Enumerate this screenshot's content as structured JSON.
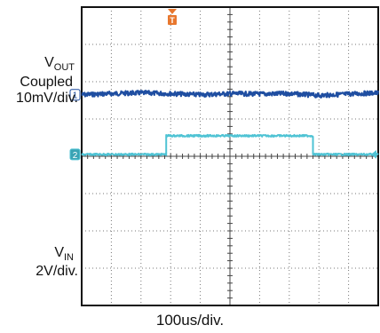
{
  "chart_data": {
    "type": "line",
    "title": "",
    "xlabel": "100us/div.",
    "grid": true,
    "divisions": {
      "x": 10,
      "y": 8
    },
    "trigger_marker": "T",
    "channels": [
      {
        "id": "1",
        "label_main": "V",
        "label_sub": "OUT",
        "label_line2": "Coupled",
        "label_line3": "10mV/div.",
        "color": "#1f4ea1",
        "marker_color": "#ffffff",
        "reference_div": 2.3,
        "x_div": [
          0,
          1,
          2,
          3,
          4,
          5,
          6,
          7,
          8,
          9,
          10
        ],
        "y_div": [
          0.05,
          0.02,
          0.0,
          0.02,
          0.05,
          0.02,
          0.03,
          0.02,
          0.07,
          0.03,
          0.0
        ],
        "noise_div": 0.06
      },
      {
        "id": "2",
        "label_main": "V",
        "label_sub": "IN",
        "label_line2": "2V/div.",
        "color": "#4fc3d4",
        "marker_color": "#3aa3b4",
        "reference_div": 7.0,
        "x_div": [
          0,
          2.85,
          2.85,
          7.8,
          7.8,
          10
        ],
        "y_div": [
          -3.05,
          -3.05,
          -3.55,
          -3.55,
          -3.05,
          -3.05
        ],
        "noise_div": 0.025
      }
    ]
  }
}
